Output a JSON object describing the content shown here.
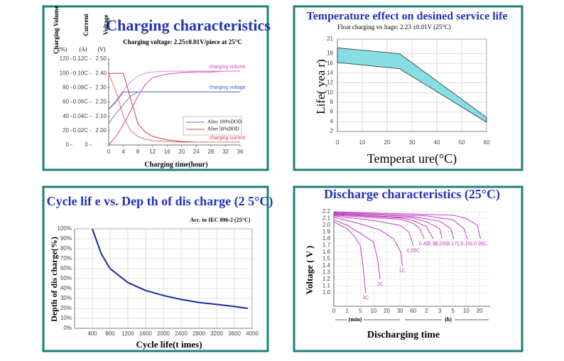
{
  "chart_data": [
    {
      "type": "line",
      "title": "Charging characteristics",
      "subtitle": "Charging voltage:  2.25±0.01V/piece at 25°C",
      "ylabel": "Charging Volume",
      "yunit": "(%)",
      "y2label": "Current",
      "y2unit": "(A)",
      "y3label": "Voltage",
      "y3unit": "(V)",
      "xlabel": "Charging time(hour)",
      "xlim": [
        0,
        36
      ],
      "xticks": [
        0,
        4,
        8,
        12,
        16,
        20,
        24,
        28,
        32,
        36
      ],
      "ylim": [
        0,
        120
      ],
      "yticks": [
        0,
        20,
        40,
        60,
        80,
        100,
        120
      ],
      "y2lim": [
        0,
        0.12
      ],
      "y2ticks": [
        0,
        {
          "value": 0.02,
          "label": "0.02C"
        },
        {
          "value": 0.04,
          "label": "0.04C"
        },
        {
          "value": 0.06,
          "label": "0.06C"
        },
        {
          "value": 0.08,
          "label": "0.08C"
        },
        {
          "value": 0.1,
          "label": "0.10C"
        },
        {
          "value": 0.12,
          "label": "0.12C"
        }
      ],
      "y3lim": [
        1.9,
        2.5
      ],
      "y3ticks": [
        {
          "value": 2,
          "label": "2.00"
        },
        {
          "value": 2.1,
          "label": "2.10"
        },
        {
          "value": 2.2,
          "label": "2.20"
        },
        {
          "value": 2.3,
          "label": "2.30"
        },
        {
          "value": 2.4,
          "label": "2.40"
        },
        {
          "value": 2.5,
          "label": "2.50"
        }
      ],
      "x": [
        0,
        2,
        4,
        6,
        8,
        10,
        12,
        16,
        20,
        24,
        28,
        32,
        36
      ],
      "series": [
        {
          "name": "charging volume",
          "color": "#d040c0",
          "axis": "y",
          "values": [
            0,
            12,
            28,
            48,
            68,
            84,
            94,
            99,
            101,
            102,
            102,
            103,
            103
          ]
        },
        {
          "color": "#e088e0",
          "axis": "y",
          "values": [
            50,
            62,
            76,
            88,
            96,
            100,
            102,
            103,
            103,
            103,
            103,
            103,
            103
          ]
        },
        {
          "name": "charging voltage",
          "color": "#4a5ad0",
          "axis": "y3",
          "values": [
            2.15,
            2.2,
            2.27,
            2.27,
            2.27,
            2.27,
            2.27,
            2.27,
            2.27,
            2.27,
            2.27,
            2.27,
            2.27
          ]
        },
        {
          "color": "#7080d0",
          "axis": "y3",
          "values": [
            2.05,
            2.12,
            2.18,
            2.24,
            2.27,
            2.27,
            2.27,
            2.27,
            2.27,
            2.27,
            2.27,
            2.27,
            2.27
          ]
        },
        {
          "name": "charging current",
          "color": "#d04040",
          "axis": "y2",
          "values": [
            0.1,
            0.1,
            0.1,
            0.065,
            0.03,
            0.018,
            0.012,
            0.007,
            0.005,
            0.004,
            0.004,
            0.004,
            0.004
          ]
        },
        {
          "color": "#e07070",
          "axis": "y2",
          "values": [
            0.1,
            0.075,
            0.04,
            0.02,
            0.012,
            0.008,
            0.006,
            0.005,
            0.004,
            0.004,
            0.004,
            0.004,
            0.004
          ]
        }
      ],
      "legend": [
        {
          "name": "After 100%DOD",
          "color": "#5a6fd0"
        },
        {
          "name": "After 50%DOD",
          "color": "#d05050"
        }
      ],
      "grid": false
    },
    {
      "type": "band",
      "title": "Temperature effect on desined service life",
      "subtitle": "Float charging vo  ltage: 2.23 ±0.01V   (25°C)",
      "ylabel": "Life( yea r)",
      "xlabel": "Temperat ure(°C)",
      "x": [
        0,
        25,
        60
      ],
      "upper": [
        19.2,
        18,
        4.9
      ],
      "lower": [
        16.2,
        14.9,
        3.9
      ],
      "color": "#86dde2",
      "xlim": [
        0,
        60
      ],
      "xticks": [
        0,
        10,
        20,
        30,
        40,
        50,
        60
      ],
      "ylim": [
        2,
        21
      ],
      "yticks": [
        2,
        4,
        6,
        8,
        10,
        12,
        14,
        16,
        18,
        21
      ],
      "grid": true
    },
    {
      "type": "line",
      "title": "Cycle lif e vs. Dep th of dis charge (2 5°C)",
      "subtitle": "Acc. to IEC 896-2    (25°C)",
      "ylabel": "Depth of dis charge(%)",
      "xlabel": "Cycle life(t imes)",
      "xlim": [
        0,
        4000
      ],
      "xticks": [
        400,
        800,
        1200,
        1600,
        2000,
        2400,
        2800,
        3200,
        3600,
        4000
      ],
      "ylim": [
        0,
        100
      ],
      "yticks": [
        {
          "value": 0,
          "label": "0%"
        },
        {
          "value": 10,
          "label": "10%"
        },
        {
          "value": 20,
          "label": "20%"
        },
        {
          "value": 30,
          "label": "30%"
        },
        {
          "value": 40,
          "label": "40%"
        },
        {
          "value": 50,
          "label": "50%"
        },
        {
          "value": 60,
          "label": "60%"
        },
        {
          "value": 70,
          "label": "70%"
        },
        {
          "value": 80,
          "label": "80%"
        },
        {
          "value": 90,
          "label": "90%"
        },
        {
          "value": 100,
          "label": "100%"
        }
      ],
      "series": [
        {
          "color": "#1a2a9a",
          "x": [
            400,
            600,
            800,
            1200,
            1600,
            2000,
            2400,
            2800,
            3200,
            3600,
            3900
          ],
          "values": [
            100,
            75,
            60,
            46,
            38,
            33,
            29,
            26,
            24,
            22,
            20
          ]
        }
      ],
      "grid": true
    },
    {
      "type": "line",
      "title": "Discharge characteristics (25°C)",
      "ylabel": "Voltage ( V )",
      "xlabel": "Discharging time",
      "xunits": [
        "(min)",
        "(h)"
      ],
      "xlim": [
        0,
        1200
      ],
      "xticks": [
        0,
        1,
        5,
        10,
        20,
        30,
        60,
        {
          "value": 120,
          "label": "2"
        },
        {
          "value": 180,
          "label": "3"
        },
        {
          "value": 300,
          "label": "5"
        },
        {
          "value": 600,
          "label": "10"
        },
        {
          "value": 1200,
          "label": "20"
        }
      ],
      "ylim": [
        0.8,
        2.2
      ],
      "yticks": [
        {
          "value": 1,
          "label": "1.0"
        },
        1.1,
        1.2,
        1.3,
        1.4,
        1.5,
        1.6,
        1.7,
        1.8,
        1.9,
        {
          "value": 2,
          "label": "2.0"
        },
        2.1,
        2.2
      ],
      "series": [
        {
          "name": "3C",
          "color": "#c040c0",
          "x": [
            0,
            1,
            3,
            5,
            6,
            7
          ],
          "values": [
            2.05,
            1.95,
            1.85,
            1.7,
            1.4,
            1.0
          ]
        },
        {
          "name": "2C",
          "color": "#c040c0",
          "x": [
            0,
            1,
            5,
            10,
            13,
            15
          ],
          "values": [
            2.08,
            2.0,
            1.88,
            1.75,
            1.5,
            1.2
          ]
        },
        {
          "name": "1C",
          "color": "#c040c0",
          "x": [
            0,
            5,
            15,
            25,
            32,
            35
          ],
          "values": [
            2.12,
            2.02,
            1.93,
            1.8,
            1.6,
            1.4
          ]
        },
        {
          "name": "0.55C",
          "color": "#c040c0",
          "x": [
            0,
            10,
            30,
            50,
            60
          ],
          "values": [
            2.14,
            2.07,
            2.0,
            1.9,
            1.7
          ]
        },
        {
          "name": "0.4C",
          "color": "#c040c0",
          "x": [
            0,
            30,
            60,
            90,
            110
          ],
          "values": [
            2.15,
            2.09,
            2.03,
            1.95,
            1.8
          ]
        },
        {
          "name": "0.3C",
          "color": "#c040c0",
          "x": [
            0,
            30,
            60,
            120,
            150
          ],
          "values": [
            2.16,
            2.11,
            2.07,
            1.98,
            1.8
          ]
        },
        {
          "name": "0.25C",
          "color": "#c040c0",
          "x": [
            0,
            60,
            120,
            180,
            200
          ],
          "values": [
            2.17,
            2.11,
            2.05,
            1.95,
            1.8
          ]
        },
        {
          "name": "0.17C",
          "color": "#c040c0",
          "x": [
            0,
            60,
            180,
            280,
            320
          ],
          "values": [
            2.18,
            2.13,
            2.06,
            1.95,
            1.8
          ]
        },
        {
          "name": "0.10C",
          "color": "#c040c0",
          "x": [
            0,
            120,
            300,
            550,
            650
          ],
          "values": [
            2.19,
            2.14,
            2.08,
            1.95,
            1.8
          ]
        },
        {
          "name": "0.05C",
          "color": "#c040c0",
          "x": [
            0,
            300,
            600,
            1100,
            1250
          ],
          "values": [
            2.2,
            2.15,
            2.1,
            2.0,
            1.8
          ]
        }
      ],
      "grid": true
    }
  ]
}
